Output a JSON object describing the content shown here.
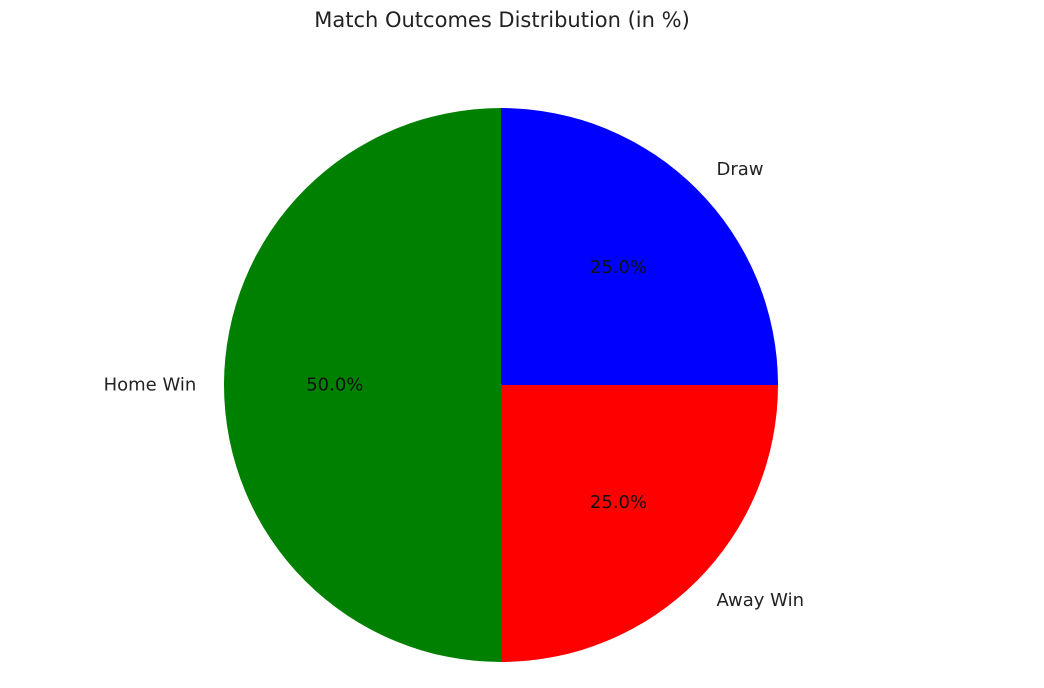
{
  "chart_data": {
    "type": "pie",
    "title": "Match Outcomes Distribution (in %)",
    "categories": [
      "Draw",
      "Away Win",
      "Home Win"
    ],
    "values": [
      25.0,
      25.0,
      50.0
    ],
    "value_labels": [
      "25.0%",
      "25.0%",
      "50.0%"
    ],
    "colors": [
      "#0000ff",
      "#ff0000",
      "#008000"
    ],
    "start_angle_deg": 90,
    "direction": "clockwise",
    "legend": "none"
  }
}
